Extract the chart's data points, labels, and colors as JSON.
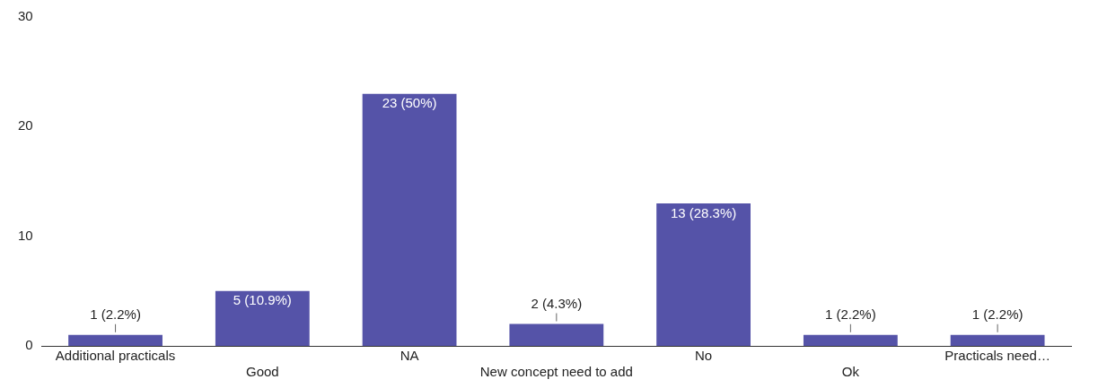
{
  "chart_data": {
    "type": "bar",
    "categories": [
      "Additional practicals",
      "Good",
      "NA",
      "New concept need to add",
      "No",
      "Ok",
      "Practicals need…"
    ],
    "values": [
      1,
      5,
      23,
      2,
      13,
      1,
      1
    ],
    "value_labels": [
      "1 (2.2%)",
      "5 (10.9%)",
      "23 (50%)",
      "2 (4.3%)",
      "13 (28.3%)",
      "1 (2.2%)",
      "1 (2.2%)"
    ],
    "color": "#5553a8",
    "ylim": [
      0,
      30
    ],
    "yticks": [
      0,
      10,
      20,
      30
    ],
    "grid": false,
    "legend": false
  }
}
